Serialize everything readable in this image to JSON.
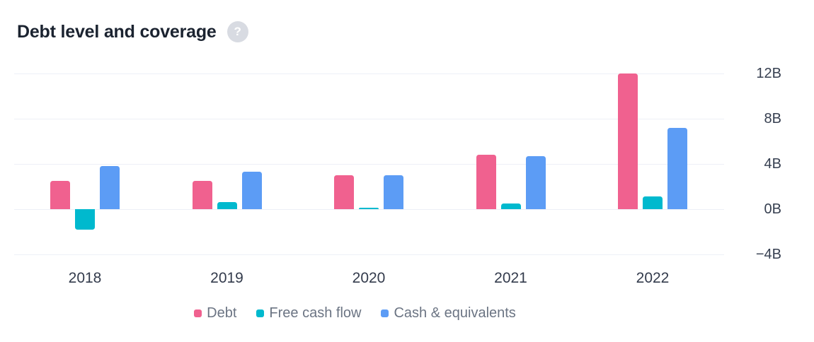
{
  "header": {
    "title": "Debt level and coverage",
    "help_glyph": "?"
  },
  "colors": {
    "debt": "#f0618f",
    "free_cash_flow": "#00b9ce",
    "cash_equivalents": "#5c9cf5",
    "gridline": "#edf0f7",
    "title_text": "#1b2330",
    "axis_text": "#363f50",
    "legend_text": "#6b7483",
    "help_circle": "#d8dbe2"
  },
  "chart_data": {
    "type": "bar",
    "title": "Debt level and coverage",
    "categories": [
      "2018",
      "2019",
      "2020",
      "2021",
      "2022"
    ],
    "series": [
      {
        "name": "Debt",
        "color": "#f0618f",
        "values": [
          2.5,
          2.5,
          3.0,
          4.8,
          12.0
        ]
      },
      {
        "name": "Free cash flow",
        "color": "#00b9ce",
        "values": [
          -1.8,
          0.6,
          0.1,
          0.5,
          1.1
        ]
      },
      {
        "name": "Cash & equivalents",
        "color": "#5c9cf5",
        "values": [
          3.8,
          3.3,
          3.0,
          4.7,
          7.2
        ]
      }
    ],
    "unit": "B",
    "ylabel": "",
    "xlabel": "",
    "yticks": [
      {
        "label": "12B",
        "value": 12
      },
      {
        "label": "8B",
        "value": 8
      },
      {
        "label": "4B",
        "value": 4
      },
      {
        "label": "0B",
        "value": 0
      },
      {
        "label": "−4B",
        "value": -4
      }
    ],
    "ylim": [
      -4.75,
      13
    ],
    "grid": true,
    "axis_side": "right",
    "legend_position": "bottom"
  }
}
